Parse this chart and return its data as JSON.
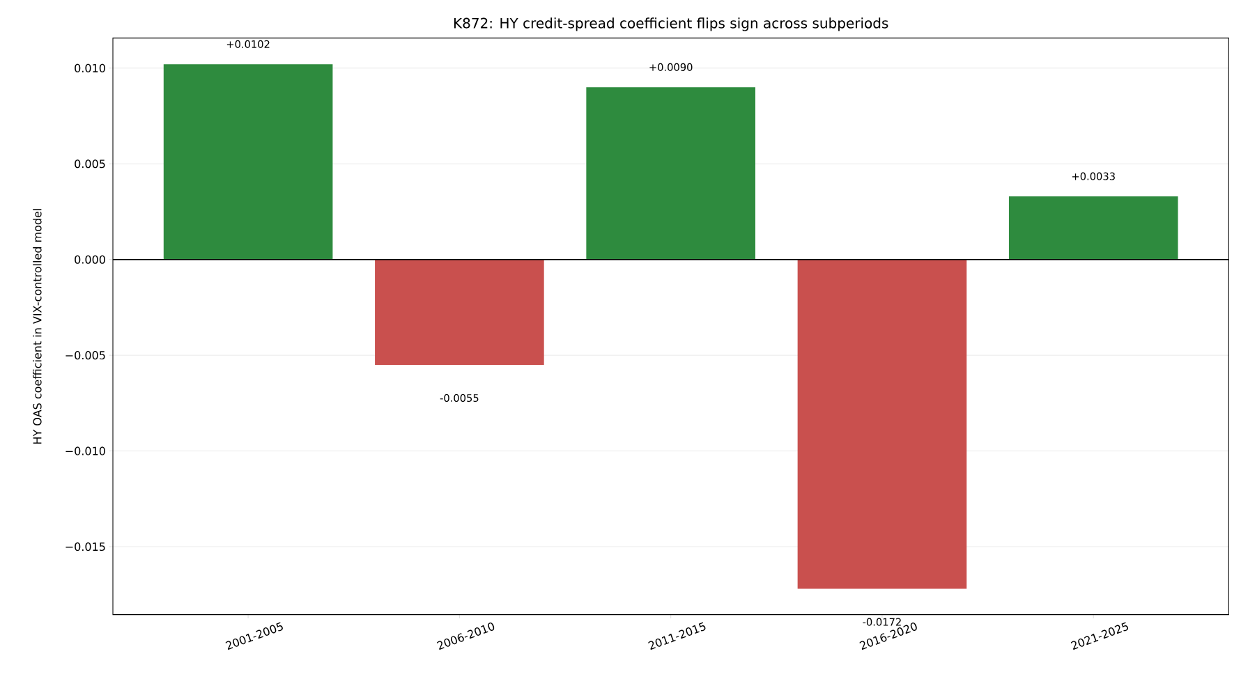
{
  "chart_data": {
    "type": "bar",
    "title": "K872: HY credit-spread coefficient flips sign across subperiods",
    "ylabel": "HY OAS coefficient in VIX-controlled model",
    "categories": [
      "2001-2005",
      "2006-2010",
      "2011-2015",
      "2016-2020",
      "2021-2025"
    ],
    "values": [
      0.0102,
      -0.0055,
      0.009,
      -0.0172,
      0.0033
    ],
    "colors": [
      "#2e8b3e",
      "#c9504e",
      "#2e8b3e",
      "#c9504e",
      "#2e8b3e"
    ],
    "value_labels": [
      "+0.0102",
      "-0.0055",
      "+0.0090",
      "-0.0172",
      "+0.0033"
    ],
    "ylim": [
      -0.01855,
      0.01157
    ],
    "yticks": [
      {
        "value": -0.015,
        "label": "−0.015"
      },
      {
        "value": -0.01,
        "label": "−0.010"
      },
      {
        "value": -0.005,
        "label": "−0.005"
      },
      {
        "value": 0,
        "label": "0.000"
      },
      {
        "value": 0.005,
        "label": "0.005"
      },
      {
        "value": 0.01,
        "label": "0.010"
      }
    ],
    "grid": "y",
    "ref_lines": [
      {
        "axis": "y",
        "value": 0,
        "color": "#000000"
      }
    ]
  }
}
